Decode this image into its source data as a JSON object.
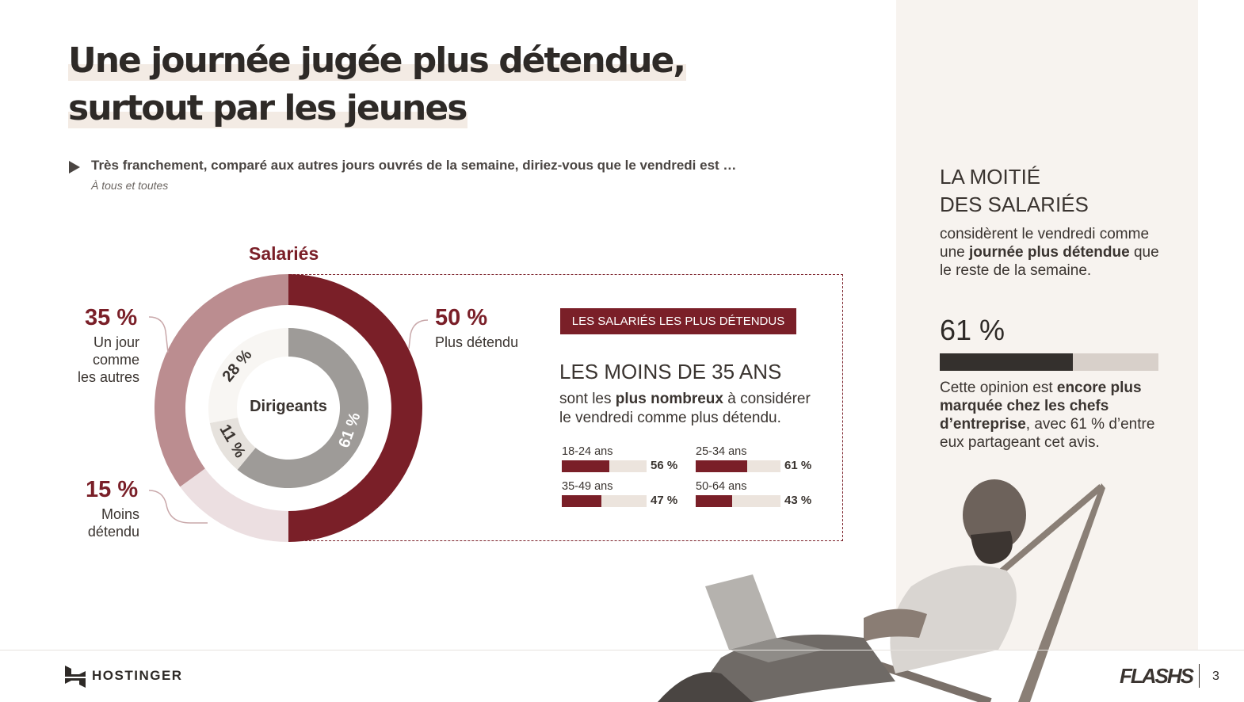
{
  "title": {
    "line1": "Une journée jugée plus détendue,",
    "line2": "surtout par les jeunes"
  },
  "question": "Très franchement, comparé aux autres jours ouvrés de la semaine, diriez-vous que le vendredi est …",
  "base": "À tous et toutes",
  "chart_data": [
    {
      "type": "pie",
      "title": "Salariés",
      "categories": [
        "Plus détendu",
        "Moins détendu",
        "Un jour comme les autres"
      ],
      "values": [
        50,
        15,
        35
      ],
      "labels": [
        "50 %",
        "15 %",
        "35 %"
      ],
      "label_lines": {
        "plus": [
          "Plus détendu"
        ],
        "moins": [
          "Moins",
          "détendu"
        ],
        "comme": [
          "Un jour",
          "comme",
          "les autres"
        ]
      },
      "colors": [
        "#7a1f28",
        "#ecdfe1",
        "#bb8d90"
      ]
    },
    {
      "type": "pie",
      "title": "Dirigeants",
      "categories": [
        "Plus détendu",
        "Moins détendu",
        "Un jour comme les autres"
      ],
      "values": [
        61,
        11,
        28
      ],
      "labels": [
        "61 %",
        "11 %",
        "28 %"
      ],
      "colors": [
        "#9e9b98",
        "#e6e2dd",
        "#f8f6f3"
      ]
    },
    {
      "type": "bar",
      "title": "",
      "categories": [
        "18-24 ans",
        "25-34 ans",
        "35-49 ans",
        "50-64 ans"
      ],
      "values": [
        56,
        61,
        47,
        43
      ],
      "labels": [
        "56 %",
        "61 %",
        "47 %",
        "43 %"
      ],
      "ylim": [
        0,
        100
      ]
    }
  ],
  "callout": {
    "badge": "LES SALARIÉS LES PLUS DÉTENDUS",
    "heading": "LES MOINS DE 35 ANS",
    "desc_line1_pre": "sont les ",
    "desc_line1_bold": "plus nombreux",
    "desc_line1_post": " à considérer",
    "desc_line2": "le vendredi comme plus détendu."
  },
  "side": {
    "heading_line1": "LA MOITIÉ",
    "heading_line2": "DES SALARIÉS",
    "p1_line1": "considèrent le vendredi comme",
    "p1_line2_pre": "une ",
    "p1_line2_bold": "journée plus détendue",
    "p1_line2_post": " que",
    "p1_line3": "le reste de la semaine.",
    "big_pct": "61 %",
    "big_value": 61,
    "p2_line1_pre": "Cette opinion est ",
    "p2_line1_bold": "encore plus",
    "p2_line2_bold": "marquée chez les chefs",
    "p2_line3_bold": "d’entreprise",
    "p2_line3_post": ", avec 61 % d’entre",
    "p2_line4": "eux partageant cet avis."
  },
  "footer": {
    "brand": "HOSTINGER",
    "series": "FLASHS",
    "page": "3"
  },
  "colors": {
    "accent": "#7a1f28",
    "panel": "#f7f3ef",
    "text": "#3a3430"
  }
}
